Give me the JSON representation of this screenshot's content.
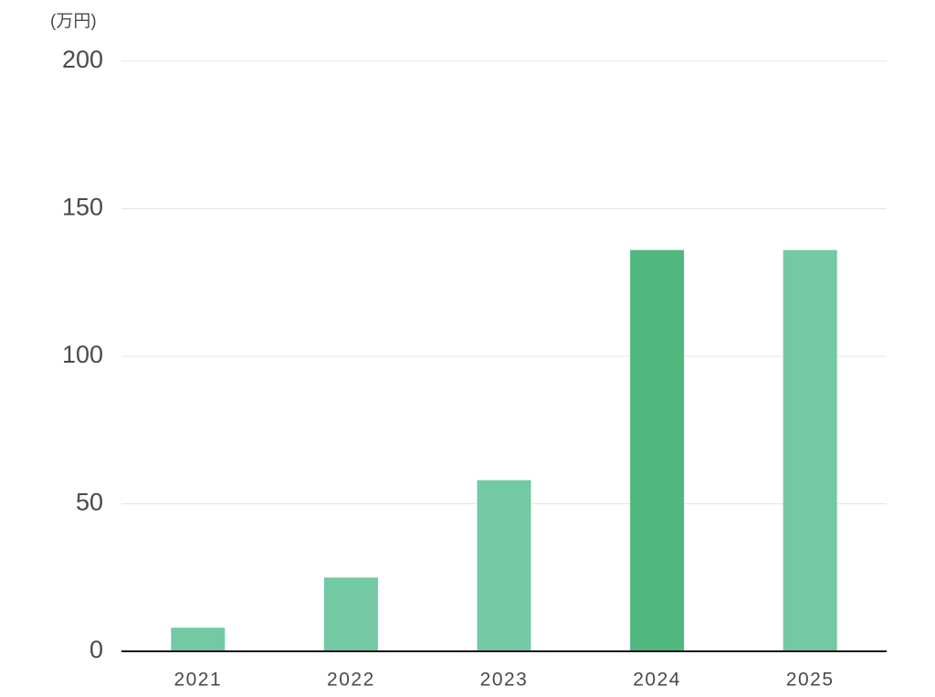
{
  "chart_data": {
    "type": "bar",
    "y_label": "(万円)",
    "categories": [
      "2021",
      "2022",
      "2023",
      "2024",
      "2025"
    ],
    "values": [
      8,
      25,
      58,
      136,
      136
    ],
    "colors": [
      "#72c9a3",
      "#72c9a3",
      "#72c9a3",
      "#52b67f",
      "#72c9a3"
    ],
    "ylim": [
      0,
      200
    ],
    "yticks": [
      0,
      50,
      100,
      150,
      200
    ],
    "grid": true
  }
}
